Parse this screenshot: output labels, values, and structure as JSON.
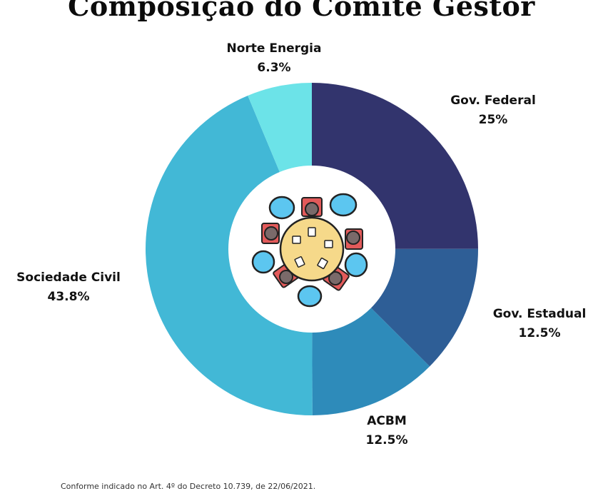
{
  "chart_data": {
    "type": "pie",
    "title": "Composição do Comitê Gestor",
    "categories": [
      "Gov. Federal",
      "Gov. Estadual",
      "ACBM",
      "Sociedade Civil",
      "Norte Energia"
    ],
    "values": [
      25,
      12.5,
      12.5,
      43.8,
      6.3
    ],
    "value_labels": [
      "25%",
      "12.5%",
      "12.5%",
      "43.8%",
      "6.3%"
    ],
    "colors": [
      "#32346d",
      "#2e5e96",
      "#2e8bba",
      "#42b8d6",
      "#6ce3e8"
    ],
    "donut": true,
    "center_icon": "meeting-table-icon"
  },
  "footnote": "Conforme indicado no Art. 4º do Decreto 10.739, de 22/06/2021."
}
